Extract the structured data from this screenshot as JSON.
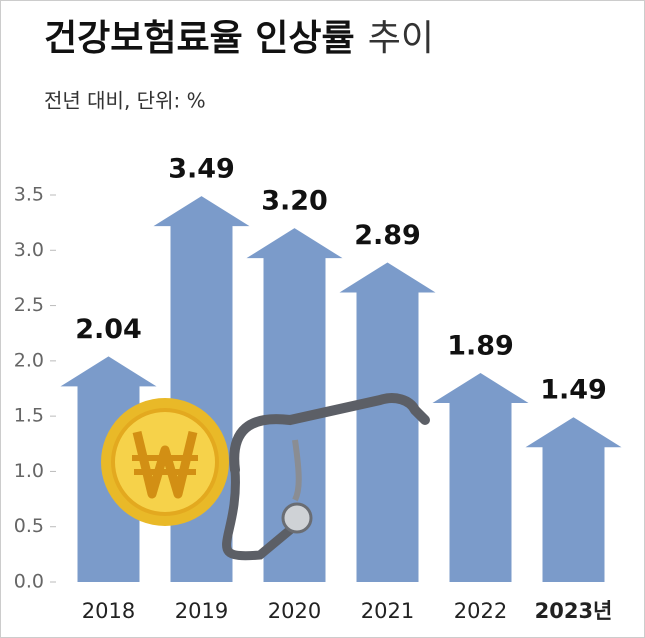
{
  "chart_data": {
    "type": "arrow-bar",
    "title": "건강보험료율 인상률",
    "title_suffix": "추이",
    "subtitle": "전년 대비, 단위: %",
    "categories": [
      "2018",
      "2019",
      "2020",
      "2021",
      "2022",
      "2023년"
    ],
    "values": [
      2.04,
      3.49,
      3.2,
      2.89,
      1.89,
      1.49
    ],
    "value_labels": [
      "2.04",
      "3.49",
      "3.20",
      "2.89",
      "1.89",
      "1.49"
    ],
    "color": "#7b9bca",
    "ylim": [
      0,
      3.5
    ],
    "yticks": [
      {
        "value": 0,
        "label": "0.0"
      },
      0.5,
      {
        "value": 1,
        "label": "1.0"
      },
      1.5,
      {
        "value": 2,
        "label": "2.0"
      },
      2.5,
      {
        "value": 3,
        "label": "3.0"
      },
      3.5
    ],
    "grid": false
  }
}
